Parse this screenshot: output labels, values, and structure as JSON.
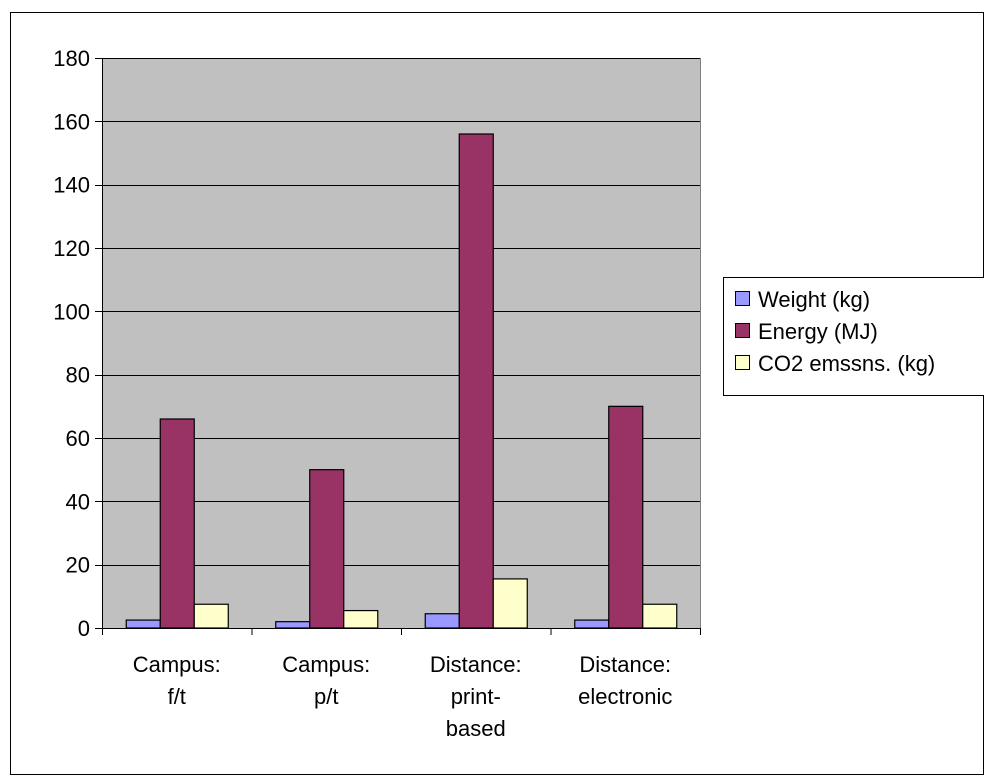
{
  "chart_data": {
    "type": "bar",
    "categories": [
      [
        "Campus:",
        "f/t"
      ],
      [
        "Campus:",
        "p/t"
      ],
      [
        "Distance:",
        "print-",
        "based"
      ],
      [
        "Distance:",
        "electronic"
      ]
    ],
    "series": [
      {
        "name": "Weight (kg)",
        "color": "#9999ff",
        "values": [
          2.5,
          2,
          4.5,
          2.5
        ]
      },
      {
        "name": "Energy (MJ)",
        "color": "#993366",
        "values": [
          66,
          50,
          156,
          70
        ]
      },
      {
        "name": "CO2 emssns. (kg)",
        "color": "#ffffcc",
        "values": [
          7.5,
          5.5,
          15.5,
          7.5
        ]
      }
    ],
    "yticks": [
      "0",
      "20",
      "40",
      "60",
      "80",
      "100",
      "120",
      "140",
      "160",
      "180"
    ],
    "ylim": [
      0,
      180
    ],
    "grid": true,
    "plot_background": "#c0c0c0",
    "legend_position": "right"
  }
}
